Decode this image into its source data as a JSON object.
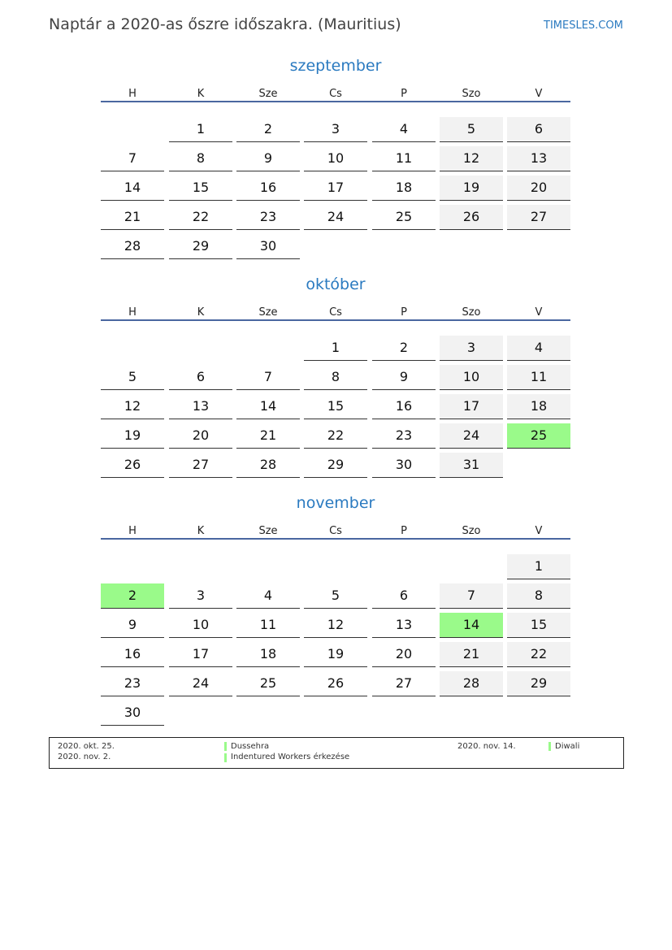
{
  "header": {
    "title": "Naptár a 2020-as őszre időszakra. (Mauritius)",
    "brand": "TIMESLES.COM"
  },
  "weekdays": [
    "H",
    "K",
    "Sze",
    "Cs",
    "P",
    "Szo",
    "V"
  ],
  "colors": {
    "holiday": "#9afa8a",
    "weekend": "#f2f2f2",
    "accent": "#2a7ac0"
  },
  "months": [
    {
      "name": "szeptember",
      "weeks": [
        [
          null,
          1,
          2,
          3,
          4,
          5,
          6
        ],
        [
          7,
          8,
          9,
          10,
          11,
          12,
          13
        ],
        [
          14,
          15,
          16,
          17,
          18,
          19,
          20
        ],
        [
          21,
          22,
          23,
          24,
          25,
          26,
          27
        ],
        [
          28,
          29,
          30,
          null,
          null,
          null,
          null
        ]
      ],
      "holidays": []
    },
    {
      "name": "október",
      "weeks": [
        [
          null,
          null,
          null,
          1,
          2,
          3,
          4
        ],
        [
          5,
          6,
          7,
          8,
          9,
          10,
          11
        ],
        [
          12,
          13,
          14,
          15,
          16,
          17,
          18
        ],
        [
          19,
          20,
          21,
          22,
          23,
          24,
          25
        ],
        [
          26,
          27,
          28,
          29,
          30,
          31,
          null
        ]
      ],
      "holidays": [
        25
      ]
    },
    {
      "name": "november",
      "weeks": [
        [
          null,
          null,
          null,
          null,
          null,
          null,
          1
        ],
        [
          2,
          3,
          4,
          5,
          6,
          7,
          8
        ],
        [
          9,
          10,
          11,
          12,
          13,
          14,
          15
        ],
        [
          16,
          17,
          18,
          19,
          20,
          21,
          22
        ],
        [
          23,
          24,
          25,
          26,
          27,
          28,
          29
        ],
        [
          30,
          null,
          null,
          null,
          null,
          null,
          null
        ]
      ],
      "holidays": [
        2,
        14
      ]
    }
  ],
  "legend": [
    {
      "date": "2020. okt. 25.",
      "name": "Dussehra"
    },
    {
      "date": "2020. nov. 2.",
      "name": "Indentured Workers érkezése"
    },
    {
      "date": "2020. nov. 14.",
      "name": "Diwali"
    }
  ]
}
